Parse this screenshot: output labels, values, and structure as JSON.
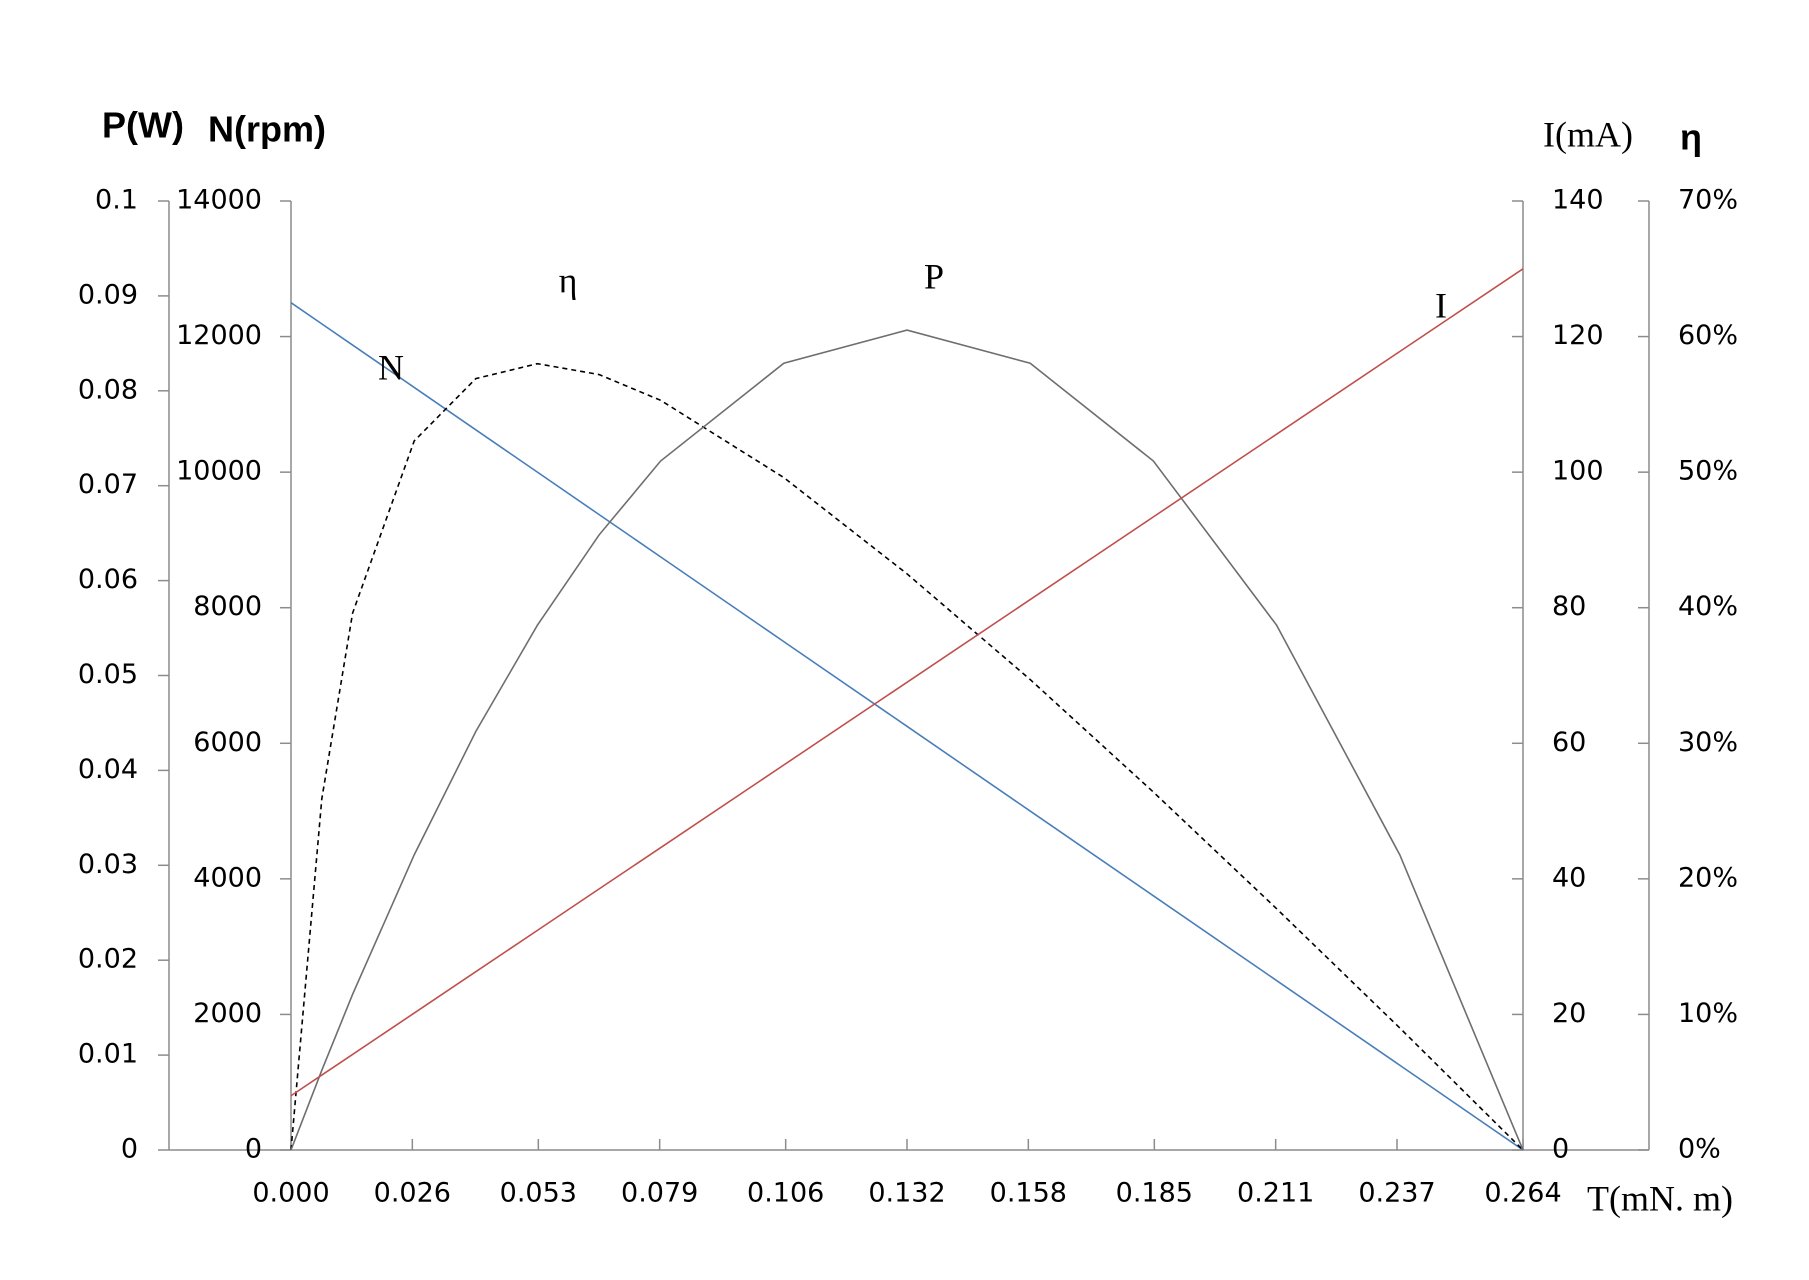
{
  "chart_data": {
    "type": "line",
    "x_label": "T(mN. m)",
    "y_label": "P(W)",
    "y2_label": "N(rpm)",
    "y3_label": "I(mA)",
    "y4_label": "η",
    "x": [
      0,
      0.0066,
      0.0132,
      0.0264,
      0.0396,
      0.0528,
      0.066,
      0.0792,
      0.1056,
      0.132,
      0.1584,
      0.1848,
      0.2112,
      0.2376,
      0.264
    ],
    "xlim": [
      0,
      0.264
    ],
    "xticks": [
      {
        "value": 0,
        "label": "0.000"
      },
      0.026,
      0.053,
      0.079,
      0.106,
      0.132,
      0.158,
      0.185,
      0.211,
      0.237,
      0.264
    ],
    "ylim": [
      0,
      0.1
    ],
    "yticks": [
      0,
      0.01,
      0.02,
      0.03,
      0.04,
      0.05,
      0.06,
      0.07,
      0.08,
      0.09,
      0.1
    ],
    "y2lim": [
      0,
      14000
    ],
    "y2ticks": [
      0,
      2000,
      4000,
      6000,
      8000,
      10000,
      12000,
      14000
    ],
    "y3lim": [
      0,
      140
    ],
    "y3ticks": [
      0,
      20,
      40,
      60,
      80,
      100,
      120,
      140
    ],
    "y4lim": [
      0,
      70
    ],
    "y4ticks": [
      {
        "value": 0,
        "label": "0%"
      },
      {
        "value": 10,
        "label": "10%"
      },
      {
        "value": 20,
        "label": "20%"
      },
      {
        "value": 30,
        "label": "30%"
      },
      {
        "value": 40,
        "label": "40%"
      },
      {
        "value": 50,
        "label": "50%"
      },
      {
        "value": 60,
        "label": "60%"
      },
      {
        "value": 70,
        "label": "70%"
      }
    ],
    "series": [
      {
        "name": "N",
        "axis": "y2",
        "color": "#4a7ebb",
        "line_style": "solid",
        "values": [
          12500,
          12187.5,
          11875,
          11250,
          10625,
          10000,
          9375,
          8750,
          7500,
          6250,
          5000,
          3750,
          2500,
          1250,
          0
        ]
      },
      {
        "name": "η",
        "axis": "y4",
        "color": "#000000",
        "line_style": "dashed",
        "values": [
          0,
          25.9,
          39.6,
          52.3,
          56.9,
          58.0,
          57.2,
          55.3,
          49.6,
          42.5,
          34.7,
          26.4,
          17.8,
          9.0,
          0
        ]
      },
      {
        "name": "P",
        "axis": "y",
        "color": "#6e6e6e",
        "line_style": "solid",
        "values": [
          0,
          0.0084,
          0.0164,
          0.0311,
          0.0441,
          0.0553,
          0.0648,
          0.0726,
          0.0829,
          0.0864,
          0.0829,
          0.0726,
          0.0553,
          0.0311,
          0
        ]
      },
      {
        "name": "I",
        "axis": "y3",
        "color": "#c0504d",
        "line_style": "solid",
        "values": [
          8,
          11.05,
          14.1,
          20.2,
          26.3,
          32.4,
          38.5,
          44.6,
          56.8,
          69,
          81.2,
          93.4,
          105.6,
          117.8,
          130
        ]
      }
    ]
  }
}
